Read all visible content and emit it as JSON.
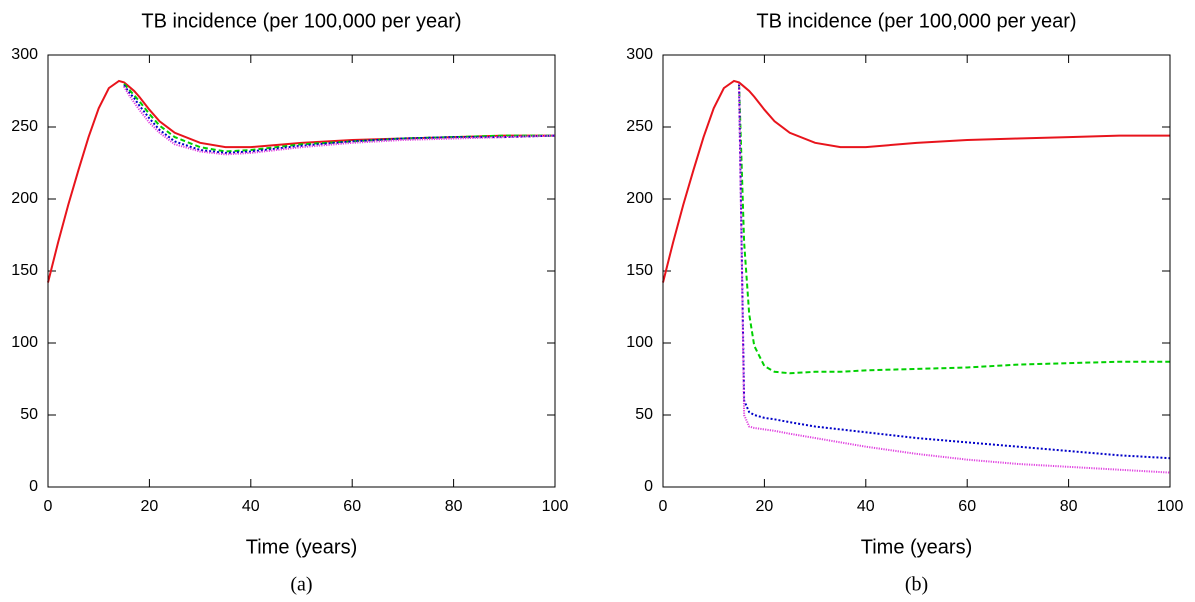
{
  "chart_data": [
    {
      "type": "line",
      "title": "TB incidence (per 100,000 per year)",
      "x_label": "Time (years)",
      "caption": "(a)",
      "x": [
        0,
        2,
        4,
        6,
        8,
        10,
        12,
        14,
        15,
        16,
        17,
        18,
        20,
        22,
        25,
        30,
        35,
        40,
        50,
        60,
        70,
        80,
        90,
        100
      ],
      "xlim": [
        0,
        100
      ],
      "xticks": [
        0,
        20,
        40,
        60,
        80,
        100
      ],
      "ylim": [
        0,
        300
      ],
      "yticks": [
        0,
        50,
        100,
        150,
        200,
        250,
        300
      ],
      "series": [
        {
          "color": "#e8141c",
          "style": "solid",
          "values": [
            142,
            170,
            196,
            220,
            243,
            263,
            277,
            282,
            281,
            278,
            275,
            271,
            262,
            254,
            246,
            239,
            236,
            236,
            239,
            241,
            242,
            243,
            244,
            244
          ]
        },
        {
          "color": "#00d000",
          "style": "dashed",
          "values": [
            null,
            null,
            null,
            null,
            null,
            null,
            null,
            null,
            280,
            276,
            272,
            268,
            259,
            251,
            243,
            236,
            233,
            234,
            238,
            240,
            242,
            243,
            244,
            244
          ]
        },
        {
          "color": "#0000c8",
          "style": "dotted",
          "values": [
            null,
            null,
            null,
            null,
            null,
            null,
            null,
            null,
            279,
            274,
            270,
            265,
            256,
            248,
            240,
            234,
            232,
            233,
            237,
            240,
            242,
            243,
            243,
            244
          ]
        },
        {
          "color": "#e040e0",
          "style": "finedotted",
          "values": [
            null,
            null,
            null,
            null,
            null,
            null,
            null,
            null,
            278,
            272,
            267,
            262,
            253,
            246,
            238,
            233,
            231,
            232,
            236,
            239,
            241,
            242,
            243,
            244
          ]
        }
      ]
    },
    {
      "type": "line",
      "title": "TB incidence (per 100,000 per year)",
      "x_label": "Time (years)",
      "caption": "(b)",
      "x": [
        0,
        2,
        4,
        6,
        8,
        10,
        12,
        14,
        15,
        16,
        17,
        18,
        20,
        22,
        25,
        30,
        35,
        40,
        50,
        60,
        70,
        80,
        90,
        100
      ],
      "xlim": [
        0,
        100
      ],
      "xticks": [
        0,
        20,
        40,
        60,
        80,
        100
      ],
      "ylim": [
        0,
        300
      ],
      "yticks": [
        0,
        50,
        100,
        150,
        200,
        250,
        300
      ],
      "series": [
        {
          "color": "#e8141c",
          "style": "solid",
          "values": [
            142,
            170,
            196,
            220,
            243,
            263,
            277,
            282,
            281,
            278,
            275,
            271,
            262,
            254,
            246,
            239,
            236,
            236,
            239,
            241,
            242,
            243,
            244,
            244
          ]
        },
        {
          "color": "#00d000",
          "style": "dashed",
          "values": [
            null,
            null,
            null,
            null,
            null,
            null,
            null,
            null,
            280,
            170,
            120,
            98,
            84,
            80,
            79,
            80,
            80,
            81,
            82,
            83,
            85,
            86,
            87,
            87
          ]
        },
        {
          "color": "#0000c8",
          "style": "dotted",
          "values": [
            null,
            null,
            null,
            null,
            null,
            null,
            null,
            null,
            280,
            60,
            52,
            50,
            48,
            47,
            45,
            42,
            40,
            38,
            34,
            31,
            28,
            25,
            22,
            20
          ]
        },
        {
          "color": "#e040e0",
          "style": "finedotted",
          "values": [
            null,
            null,
            null,
            null,
            null,
            null,
            null,
            null,
            280,
            50,
            42,
            41,
            40,
            39,
            37,
            34,
            31,
            28,
            23,
            19,
            16,
            14,
            12,
            10
          ]
        }
      ]
    }
  ]
}
